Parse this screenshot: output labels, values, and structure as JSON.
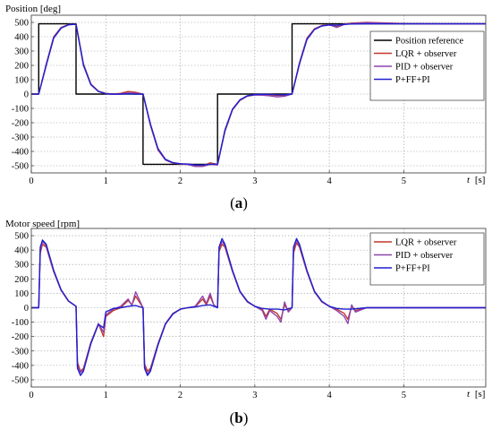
{
  "chart_data": [
    {
      "type": "line",
      "panel_label": "(a)",
      "panel_letter": "a",
      "ylabel": "Position [deg]",
      "xlabel": "t [s]",
      "xlabel_italic": "t",
      "xlabel_unit": "[s]",
      "xlim": [
        0,
        6.1
      ],
      "ylim": [
        -550,
        550
      ],
      "xticks": [
        0,
        1,
        2,
        3,
        4,
        5
      ],
      "yticks": [
        500,
        400,
        300,
        200,
        100,
        0,
        -100,
        -200,
        -300,
        -400,
        -500
      ],
      "grid": "dotted",
      "legend_placement": "right",
      "series": [
        {
          "name": "Position reference",
          "color": "#000000",
          "x": [
            0,
            0.1,
            0.1,
            0.6,
            0.6,
            1.5,
            1.5,
            2.5,
            2.5,
            3.5,
            3.5,
            6.1
          ],
          "y": [
            0,
            0,
            490,
            490,
            0,
            0,
            -490,
            -490,
            0,
            0,
            490,
            490
          ]
        },
        {
          "name": "LQR + observer",
          "color": "#c0392b",
          "x": [
            0,
            0.1,
            0.2,
            0.3,
            0.4,
            0.5,
            0.6,
            0.7,
            0.8,
            0.9,
            1.0,
            1.1,
            1.2,
            1.3,
            1.4,
            1.5,
            1.6,
            1.7,
            1.8,
            1.9,
            2.0,
            2.1,
            2.2,
            2.3,
            2.4,
            2.5,
            2.6,
            2.7,
            2.8,
            2.9,
            3.0,
            3.1,
            3.2,
            3.3,
            3.4,
            3.5,
            3.6,
            3.7,
            3.8,
            3.9,
            4.0,
            4.1,
            4.2,
            4.3,
            4.5,
            5.0,
            5.5,
            6.1
          ],
          "y": [
            0,
            0,
            210,
            400,
            465,
            485,
            488,
            210,
            70,
            20,
            5,
            0,
            5,
            18,
            12,
            0,
            -220,
            -390,
            -460,
            -482,
            -488,
            -490,
            -500,
            -500,
            -480,
            -490,
            -260,
            -110,
            -45,
            -15,
            -5,
            -3,
            -5,
            -10,
            -10,
            0,
            220,
            390,
            455,
            478,
            485,
            470,
            488,
            495,
            500,
            492,
            490,
            490
          ]
        },
        {
          "name": "PID + observer",
          "color": "#8e44ad",
          "x": [
            0,
            0.1,
            0.2,
            0.3,
            0.4,
            0.5,
            0.6,
            0.7,
            0.8,
            0.9,
            1.0,
            1.1,
            1.2,
            1.3,
            1.4,
            1.5,
            1.6,
            1.7,
            1.8,
            1.9,
            2.0,
            2.1,
            2.2,
            2.3,
            2.4,
            2.5,
            2.6,
            2.7,
            2.8,
            2.9,
            3.0,
            3.1,
            3.2,
            3.3,
            3.4,
            3.5,
            3.6,
            3.7,
            3.8,
            3.9,
            4.0,
            4.1,
            4.2,
            4.3,
            4.5,
            5.0,
            5.5,
            6.1
          ],
          "y": [
            0,
            0,
            205,
            395,
            462,
            484,
            486,
            205,
            68,
            18,
            3,
            -2,
            0,
            8,
            5,
            0,
            -215,
            -385,
            -458,
            -480,
            -486,
            -492,
            -505,
            -505,
            -490,
            -495,
            -255,
            -108,
            -42,
            -14,
            -6,
            -8,
            -12,
            -20,
            -15,
            0,
            215,
            385,
            452,
            476,
            483,
            465,
            485,
            492,
            498,
            491,
            490,
            490
          ]
        },
        {
          "name": "P+FF+PI",
          "color": "#1f1fd0",
          "x": [
            0,
            0.1,
            0.2,
            0.3,
            0.4,
            0.5,
            0.6,
            0.7,
            0.8,
            0.9,
            1.0,
            1.1,
            1.2,
            1.3,
            1.4,
            1.5,
            1.6,
            1.7,
            1.8,
            1.9,
            2.0,
            2.1,
            2.2,
            2.3,
            2.4,
            2.5,
            2.6,
            2.7,
            2.8,
            2.9,
            3.0,
            3.1,
            3.2,
            3.3,
            3.4,
            3.5,
            3.6,
            3.7,
            3.8,
            3.9,
            4.0,
            4.1,
            4.2,
            4.3,
            4.5,
            5.0,
            5.5,
            6.1
          ],
          "y": [
            0,
            0,
            200,
            390,
            460,
            483,
            488,
            200,
            65,
            18,
            2,
            0,
            0,
            2,
            0,
            0,
            -210,
            -380,
            -455,
            -478,
            -486,
            -488,
            -495,
            -495,
            -490,
            -488,
            -250,
            -105,
            -40,
            -12,
            -3,
            -2,
            -2,
            -5,
            -5,
            0,
            210,
            380,
            450,
            475,
            482,
            480,
            486,
            489,
            490,
            490,
            490,
            490
          ]
        }
      ]
    },
    {
      "type": "line",
      "panel_label": "(b)",
      "panel_letter": "b",
      "ylabel": "Motor speed [rpm]",
      "xlabel": "t [s]",
      "xlabel_italic": "t",
      "xlabel_unit": "[s]",
      "xlim": [
        0,
        6.1
      ],
      "ylim": [
        -550,
        550
      ],
      "xticks": [
        0,
        1,
        2,
        3,
        4,
        5
      ],
      "yticks": [
        500,
        400,
        300,
        200,
        100,
        0,
        -100,
        -200,
        -300,
        -400,
        -500
      ],
      "grid": "dotted",
      "legend_placement": "right",
      "series": [
        {
          "name": "LQR + observer",
          "color": "#c0392b",
          "x": [
            0,
            0.1,
            0.12,
            0.15,
            0.2,
            0.3,
            0.4,
            0.5,
            0.6,
            0.62,
            0.66,
            0.7,
            0.8,
            0.9,
            0.97,
            1.0,
            1.1,
            1.2,
            1.3,
            1.35,
            1.4,
            1.5,
            1.52,
            1.56,
            1.6,
            1.7,
            1.8,
            1.9,
            2.0,
            2.1,
            2.2,
            2.3,
            2.35,
            2.4,
            2.45,
            2.5,
            2.52,
            2.56,
            2.6,
            2.7,
            2.8,
            2.9,
            3.0,
            3.1,
            3.15,
            3.2,
            3.3,
            3.35,
            3.4,
            3.45,
            3.5,
            3.52,
            3.56,
            3.6,
            3.7,
            3.8,
            3.9,
            4.0,
            4.1,
            4.2,
            4.25,
            4.3,
            4.35,
            4.5,
            5.0,
            6.1
          ],
          "y": [
            0,
            0,
            380,
            440,
            420,
            250,
            120,
            45,
            10,
            -380,
            -440,
            -420,
            -240,
            -110,
            -200,
            -60,
            -20,
            0,
            50,
            20,
            80,
            0,
            -390,
            -440,
            -420,
            -250,
            -110,
            -40,
            -10,
            0,
            5,
            60,
            20,
            80,
            20,
            0,
            390,
            440,
            420,
            250,
            110,
            40,
            10,
            -10,
            -60,
            -10,
            -40,
            -80,
            20,
            -20,
            0,
            380,
            450,
            420,
            250,
            110,
            40,
            10,
            -10,
            -40,
            -80,
            10,
            -20,
            0,
            0,
            0
          ]
        },
        {
          "name": "PID + observer",
          "color": "#8e44ad",
          "x": [
            0,
            0.1,
            0.12,
            0.15,
            0.2,
            0.3,
            0.4,
            0.5,
            0.6,
            0.62,
            0.66,
            0.7,
            0.8,
            0.9,
            0.97,
            1.0,
            1.1,
            1.2,
            1.3,
            1.35,
            1.4,
            1.5,
            1.52,
            1.56,
            1.6,
            1.7,
            1.8,
            1.9,
            2.0,
            2.1,
            2.2,
            2.3,
            2.35,
            2.4,
            2.45,
            2.5,
            2.52,
            2.56,
            2.6,
            2.7,
            2.8,
            2.9,
            3.0,
            3.1,
            3.15,
            3.2,
            3.3,
            3.35,
            3.4,
            3.45,
            3.5,
            3.52,
            3.56,
            3.6,
            3.7,
            3.8,
            3.9,
            4.0,
            4.1,
            4.2,
            4.25,
            4.3,
            4.35,
            4.5,
            5.0,
            6.1
          ],
          "y": [
            0,
            0,
            400,
            460,
            430,
            255,
            122,
            46,
            10,
            -400,
            -450,
            -430,
            -245,
            -112,
            -170,
            -50,
            -10,
            10,
            60,
            15,
            110,
            0,
            -410,
            -460,
            -430,
            -255,
            -112,
            -42,
            -10,
            0,
            10,
            80,
            30,
            100,
            20,
            0,
            410,
            460,
            430,
            255,
            112,
            42,
            10,
            -20,
            -80,
            -20,
            -60,
            -100,
            40,
            -30,
            0,
            400,
            470,
            430,
            255,
            112,
            42,
            10,
            -20,
            -60,
            -110,
            20,
            -30,
            0,
            0,
            0
          ]
        },
        {
          "name": "P+FF+PI",
          "color": "#1f1fd0",
          "x": [
            0,
            0.1,
            0.12,
            0.15,
            0.2,
            0.3,
            0.4,
            0.5,
            0.6,
            0.62,
            0.66,
            0.7,
            0.8,
            0.9,
            0.97,
            1.0,
            1.1,
            1.2,
            1.3,
            1.4,
            1.5,
            1.52,
            1.56,
            1.6,
            1.7,
            1.8,
            1.9,
            2.0,
            2.1,
            2.2,
            2.3,
            2.4,
            2.5,
            2.52,
            2.56,
            2.6,
            2.7,
            2.8,
            2.9,
            3.0,
            3.1,
            3.2,
            3.3,
            3.4,
            3.5,
            3.52,
            3.56,
            3.6,
            3.7,
            3.8,
            3.9,
            4.0,
            4.1,
            4.2,
            4.3,
            4.5,
            5.0,
            6.1
          ],
          "y": [
            0,
            0,
            420,
            470,
            440,
            260,
            125,
            47,
            10,
            -420,
            -470,
            -440,
            -250,
            -115,
            -140,
            -30,
            -5,
            0,
            10,
            15,
            0,
            -420,
            -470,
            -440,
            -260,
            -115,
            -45,
            -10,
            0,
            5,
            15,
            20,
            0,
            420,
            480,
            440,
            260,
            115,
            45,
            10,
            -5,
            -10,
            -10,
            -15,
            0,
            420,
            480,
            440,
            260,
            115,
            45,
            10,
            -5,
            -10,
            -10,
            0,
            0,
            0
          ]
        }
      ]
    }
  ]
}
